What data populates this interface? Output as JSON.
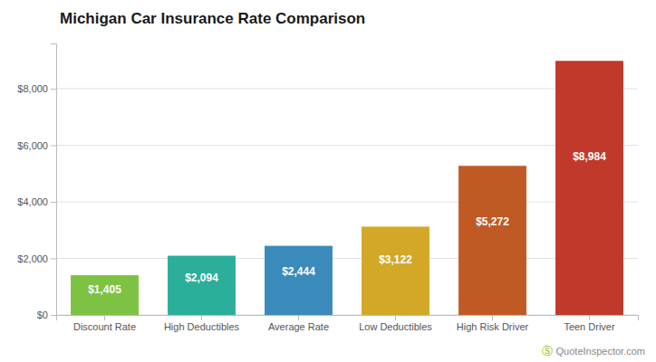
{
  "chart_data": {
    "type": "bar",
    "title": "Michigan Car Insurance Rate Comparison",
    "categories": [
      "Discount Rate",
      "High Deductibles",
      "Average Rate",
      "Low Deductibles",
      "High Risk Driver",
      "Teen Driver"
    ],
    "values": [
      1405,
      2094,
      2444,
      3122,
      5272,
      8984
    ],
    "value_labels": [
      "$1,405",
      "$2,094",
      "$2,444",
      "$3,122",
      "$5,272",
      "$8,984"
    ],
    "data_labels": true,
    "colors": [
      "#7DC242",
      "#2BAE9A",
      "#3A8BBB",
      "#D4A827",
      "#C05A25",
      "#C0392B"
    ],
    "ylim": [
      0,
      9600
    ],
    "yticks": [
      {
        "value": 0,
        "label": "$0"
      },
      {
        "value": 2000,
        "label": "$2,000"
      },
      {
        "value": 4000,
        "label": "$4,000"
      },
      {
        "value": 6000,
        "label": "$6,000"
      },
      {
        "value": 8000,
        "label": "$8,000"
      }
    ],
    "grid": true,
    "annotations": [
      {
        "text": "Ⓢ",
        "color": "#8ab800"
      },
      {
        "text": "QuoteInspector.com",
        "color": "#888888"
      }
    ]
  }
}
